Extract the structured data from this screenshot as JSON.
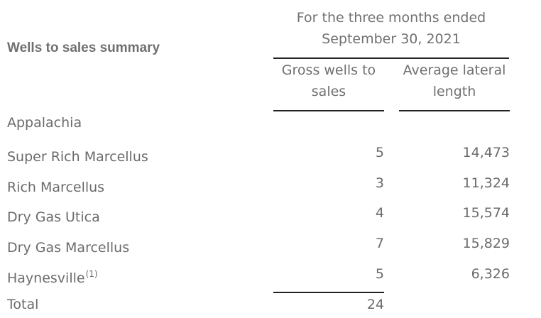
{
  "header": {
    "title": "Wells to sales summary",
    "period_line1": "For the three months ended",
    "period_line2": "September 30, 2021",
    "col1_line1": "Gross wells to",
    "col1_line2": "sales",
    "col2_line1": "Average lateral",
    "col2_line2": "length"
  },
  "section": "Appalachia",
  "rows": [
    {
      "label": "Super Rich Marcellus",
      "sup": "",
      "wells": "5",
      "length": "14,473"
    },
    {
      "label": "Rich Marcellus",
      "sup": "",
      "wells": "3",
      "length": "11,324"
    },
    {
      "label": "Dry Gas Utica",
      "sup": "",
      "wells": "4",
      "length": "15,574"
    },
    {
      "label": "Dry Gas Marcellus",
      "sup": "",
      "wells": "7",
      "length": "15,829"
    },
    {
      "label": "Haynesville",
      "sup": "(1)",
      "wells": "5",
      "length": "6,326"
    }
  ],
  "total": {
    "label": "Total",
    "wells": "24"
  }
}
